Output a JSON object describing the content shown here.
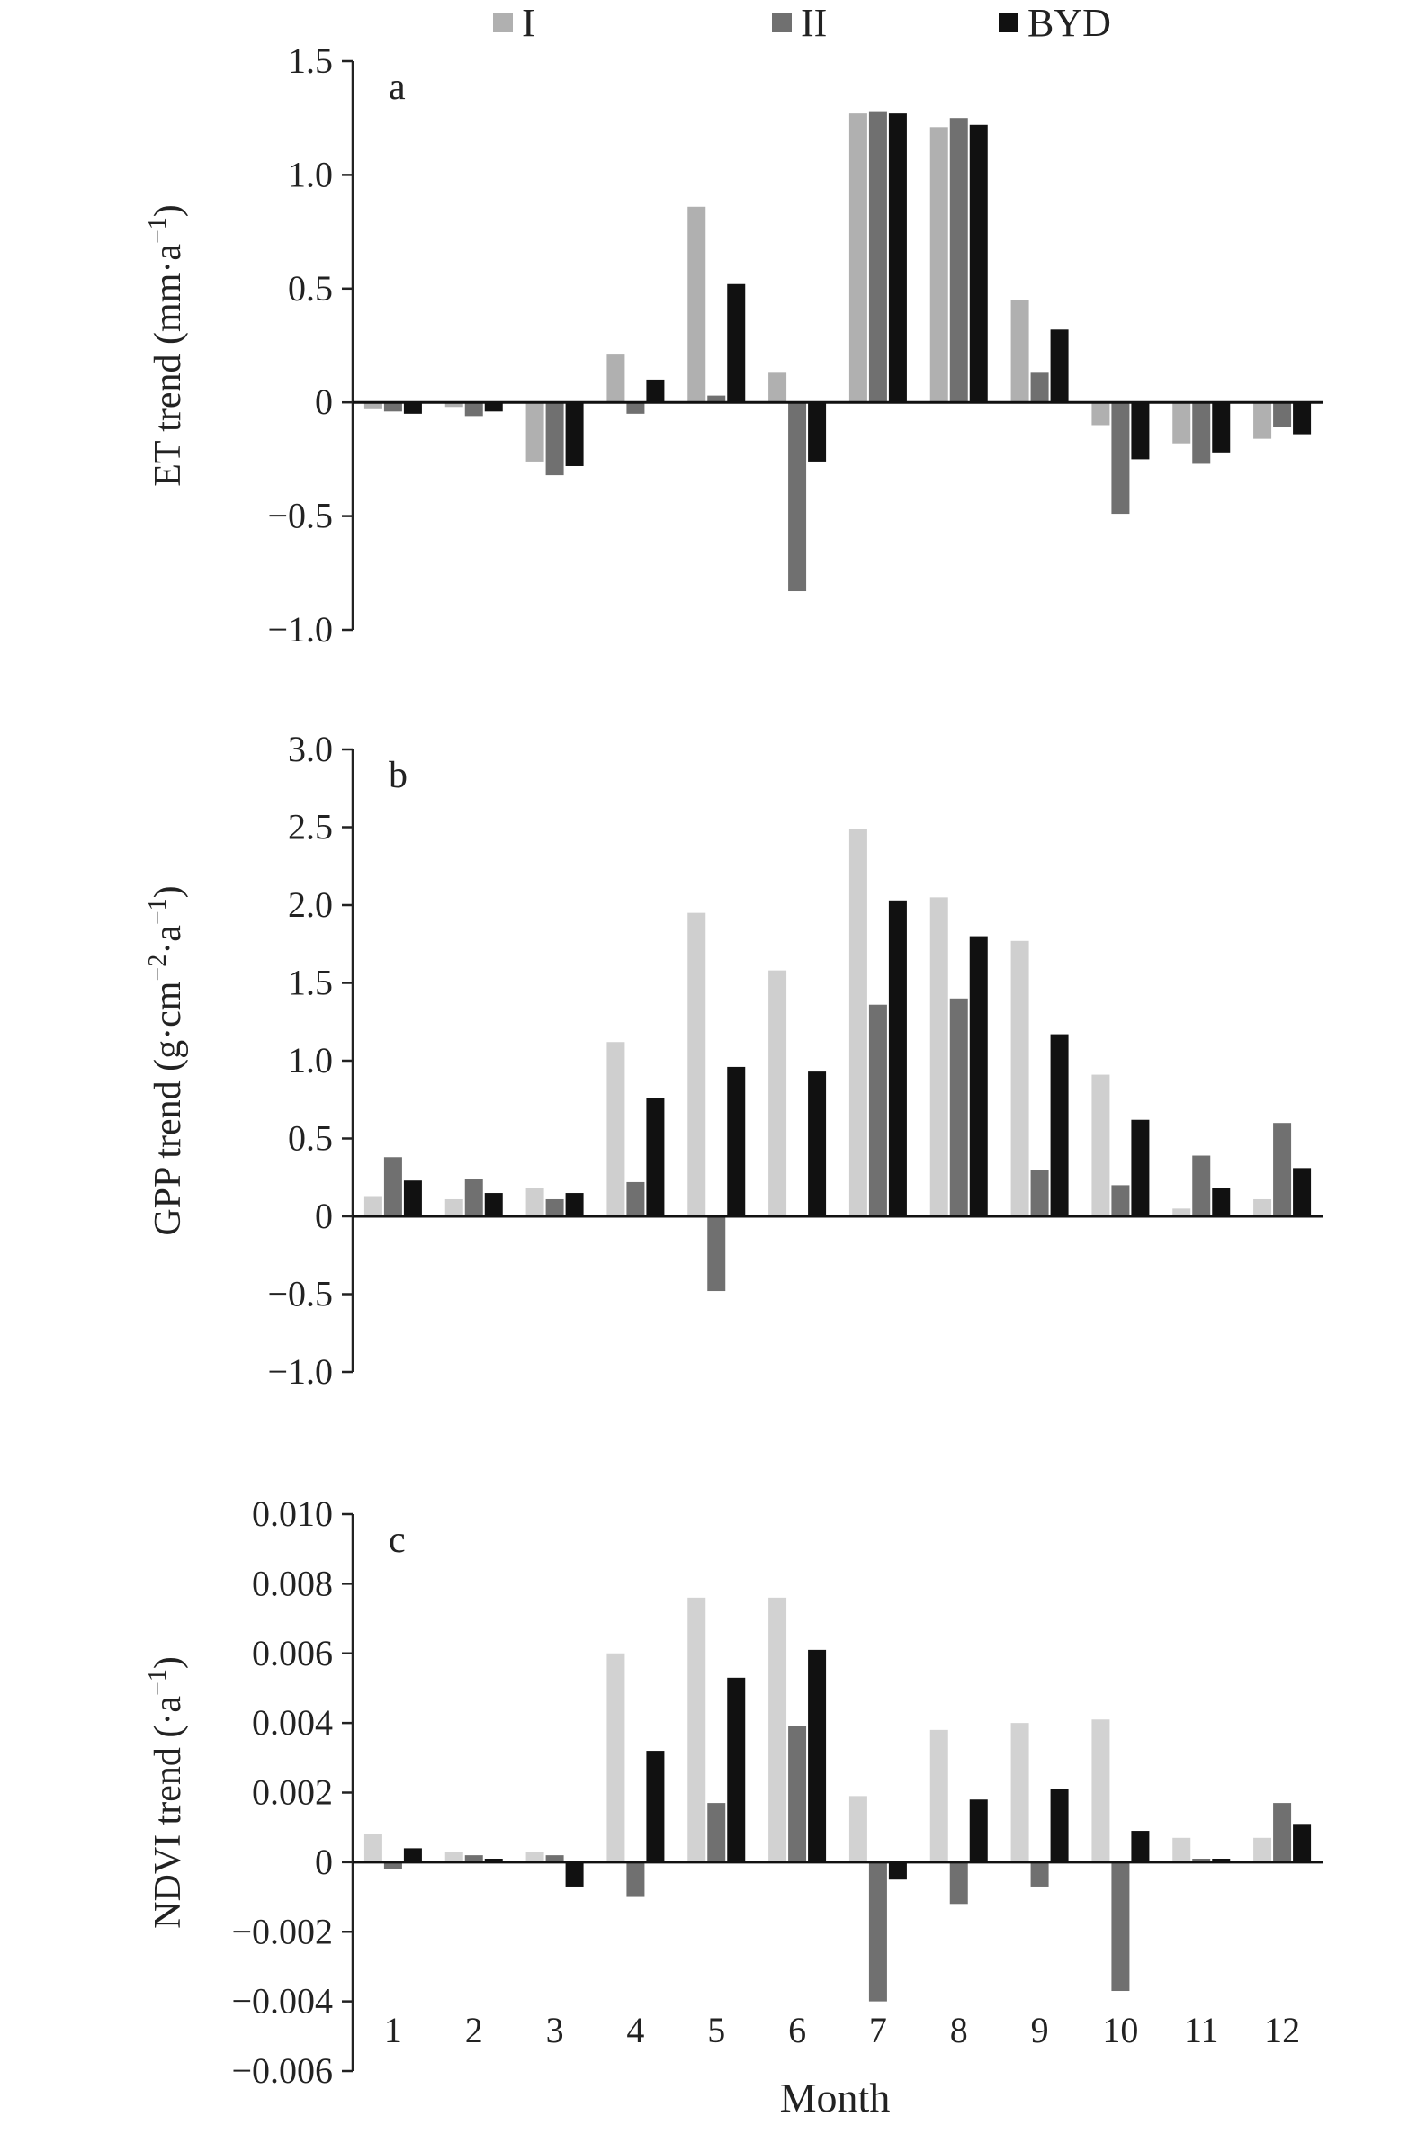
{
  "legend": {
    "position": "top-center",
    "entries": [
      {
        "label": "I",
        "color": "#b0b0b0"
      },
      {
        "label": "II",
        "color": "#707070"
      },
      {
        "label": "BYD",
        "color": "#111111"
      }
    ]
  },
  "xlabel": "Month",
  "chart_data": [
    {
      "type": "bar",
      "panel": "a",
      "ylabel": "ET trend (mm·a",
      "ylabel_sup": "−1",
      "ylabel_end": ")",
      "ylim": [
        -1.0,
        1.5
      ],
      "yticks": [
        1.5,
        1.0,
        0.5,
        0,
        -0.5,
        -1.0
      ],
      "yticklabels": [
        "1.5",
        "1.0",
        "0.5",
        "0",
        "−0.5",
        "−1.0"
      ],
      "categories": [
        "1",
        "2",
        "3",
        "4",
        "5",
        "6",
        "7",
        "8",
        "9",
        "10",
        "11",
        "12"
      ],
      "series": [
        {
          "name": "I",
          "color": "#b0b0b0",
          "values": [
            -0.03,
            -0.02,
            -0.26,
            0.21,
            0.86,
            0.13,
            1.27,
            1.21,
            0.45,
            -0.1,
            -0.18,
            -0.16
          ]
        },
        {
          "name": "II",
          "color": "#707070",
          "values": [
            -0.04,
            -0.06,
            -0.32,
            -0.05,
            0.03,
            -0.83,
            1.28,
            1.25,
            0.13,
            -0.49,
            -0.27,
            -0.11
          ]
        },
        {
          "name": "BYD",
          "color": "#111111",
          "values": [
            -0.05,
            -0.04,
            -0.28,
            0.1,
            0.52,
            -0.26,
            1.27,
            1.22,
            0.32,
            -0.25,
            -0.22,
            -0.14
          ]
        }
      ]
    },
    {
      "type": "bar",
      "panel": "b",
      "ylabel": "GPP trend (g·cm",
      "ylabel_sup": "−2",
      "ylabel_mid": "·a",
      "ylabel_sup2": "−1",
      "ylabel_end": ")",
      "ylim": [
        -1.0,
        3.0
      ],
      "yticks": [
        3.0,
        2.5,
        2.0,
        1.5,
        1.0,
        0.5,
        0,
        -0.5,
        -1.0
      ],
      "yticklabels": [
        "3.0",
        "2.5",
        "2.0",
        "1.5",
        "1.0",
        "0.5",
        "0",
        "−0.5",
        "−1.0"
      ],
      "categories": [
        "1",
        "2",
        "3",
        "4",
        "5",
        "6",
        "7",
        "8",
        "9",
        "10",
        "11",
        "12"
      ],
      "series": [
        {
          "name": "I",
          "color": "#cfcfcf",
          "values": [
            0.13,
            0.11,
            0.18,
            1.12,
            1.95,
            1.58,
            2.49,
            2.05,
            1.77,
            0.91,
            0.05,
            0.11
          ]
        },
        {
          "name": "II",
          "color": "#707070",
          "values": [
            0.38,
            0.24,
            0.11,
            0.22,
            -0.48,
            0.0,
            1.36,
            1.4,
            0.3,
            0.2,
            0.39,
            0.6
          ]
        },
        {
          "name": "BYD",
          "color": "#111111",
          "values": [
            0.23,
            0.15,
            0.15,
            0.76,
            0.96,
            0.93,
            2.03,
            1.8,
            1.17,
            0.62,
            0.18,
            0.31
          ]
        }
      ]
    },
    {
      "type": "bar",
      "panel": "c",
      "ylabel": "NDVI trend (·a",
      "ylabel_sup": "−1",
      "ylabel_end": ")",
      "ylim": [
        -0.006,
        0.01
      ],
      "yticks": [
        0.01,
        0.008,
        0.006,
        0.004,
        0.002,
        0,
        -0.002,
        -0.004,
        -0.006
      ],
      "yticklabels": [
        "0.010",
        "0.008",
        "0.006",
        "0.004",
        "0.002",
        "0",
        "−0.002",
        "−0.004",
        "−0.006"
      ],
      "categories": [
        "1",
        "2",
        "3",
        "4",
        "5",
        "6",
        "7",
        "8",
        "9",
        "10",
        "11",
        "12"
      ],
      "series": [
        {
          "name": "I",
          "color": "#d2d2d2",
          "values": [
            0.0008,
            0.0003,
            0.0003,
            0.006,
            0.0076,
            0.0076,
            0.0019,
            0.0038,
            0.004,
            0.0041,
            0.0007,
            0.0007
          ]
        },
        {
          "name": "II",
          "color": "#707070",
          "values": [
            -0.0002,
            0.0002,
            0.0002,
            -0.001,
            0.0017,
            0.0039,
            -0.004,
            -0.0012,
            -0.0007,
            -0.0037,
            0.0001,
            0.0017
          ]
        },
        {
          "name": "BYD",
          "color": "#111111",
          "values": [
            0.0004,
            0.0001,
            -0.0007,
            0.0032,
            0.0053,
            0.0061,
            -0.0005,
            0.0018,
            0.0021,
            0.0009,
            0.0001,
            0.0011
          ]
        }
      ]
    }
  ]
}
